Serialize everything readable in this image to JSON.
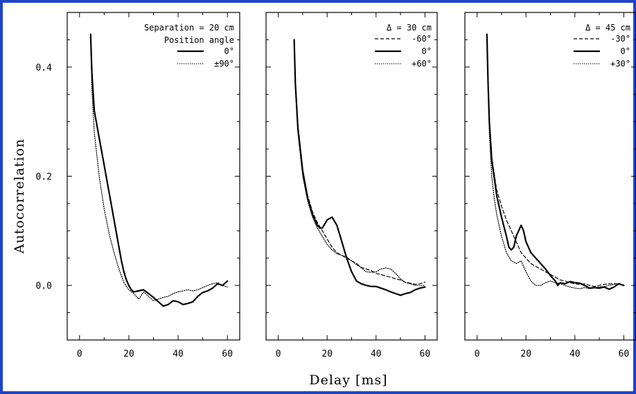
{
  "figure": {
    "ylabel": "Autocorrelation",
    "xlabel": "Delay [ms]",
    "frame_color": "#1f43c8"
  },
  "chart_data": [
    {
      "type": "line",
      "xlim": [
        -5,
        65
      ],
      "ylim": [
        -0.1,
        0.5
      ],
      "xticks": [
        0,
        20,
        40,
        60
      ],
      "xtick_labels": [
        "0",
        "20",
        "40",
        "60"
      ],
      "yticks": [
        0.0,
        0.2,
        0.4
      ],
      "ytick_labels": [
        "0.0",
        "0.2",
        "0.4"
      ],
      "show_ytick_labels": true,
      "legend": {
        "title_lines": [
          "Separation = 20 cm",
          "Position angle"
        ],
        "placement": "top-right"
      },
      "series": [
        {
          "name": "0°",
          "style": "solid",
          "x": [
            4.5,
            5,
            6,
            8,
            10,
            12,
            14,
            16,
            17,
            18,
            19,
            20,
            21,
            22,
            24,
            26,
            28,
            30,
            32,
            34,
            36,
            38,
            40,
            42,
            44,
            46,
            48,
            50,
            52,
            54,
            56,
            58,
            60
          ],
          "y": [
            0.46,
            0.39,
            0.32,
            0.27,
            0.22,
            0.17,
            0.12,
            0.07,
            0.045,
            0.025,
            0.01,
            0.0,
            -0.008,
            -0.012,
            -0.01,
            -0.008,
            -0.015,
            -0.022,
            -0.03,
            -0.038,
            -0.035,
            -0.028,
            -0.03,
            -0.035,
            -0.033,
            -0.03,
            -0.02,
            -0.013,
            -0.01,
            -0.005,
            0.003,
            0.0,
            0.008
          ]
        },
        {
          "name": "±90°",
          "style": "dotted",
          "x": [
            4.5,
            5,
            6,
            8,
            10,
            12,
            14,
            16,
            18,
            20,
            22,
            24,
            26,
            28,
            30,
            32,
            34,
            36,
            38,
            40,
            42,
            44,
            46,
            48,
            50,
            52,
            54,
            56,
            58,
            60
          ],
          "y": [
            0.46,
            0.36,
            0.28,
            0.2,
            0.14,
            0.095,
            0.06,
            0.03,
            0.005,
            -0.008,
            -0.015,
            -0.025,
            -0.012,
            -0.02,
            -0.028,
            -0.025,
            -0.022,
            -0.02,
            -0.015,
            -0.012,
            -0.01,
            -0.008,
            -0.01,
            -0.008,
            -0.004,
            0.0,
            0.003,
            0.005,
            0.0,
            -0.003
          ]
        }
      ]
    },
    {
      "type": "line",
      "xlim": [
        -5,
        65
      ],
      "ylim": [
        -0.1,
        0.5
      ],
      "xticks": [
        0,
        20,
        40,
        60
      ],
      "xtick_labels": [
        "0",
        "20",
        "40",
        "60"
      ],
      "yticks": [
        0.0,
        0.2,
        0.4
      ],
      "ytick_labels": [
        "0.0",
        "0.2",
        "0.4"
      ],
      "show_ytick_labels": false,
      "legend": {
        "title_lines": [
          "Δ = 30 cm"
        ],
        "placement": "top-right"
      },
      "series": [
        {
          "name": "-60°",
          "style": "dashed",
          "x": [
            6.5,
            7,
            8,
            10,
            12,
            14,
            16,
            18,
            20,
            22,
            24,
            26,
            28,
            30,
            32,
            34,
            36,
            38,
            40,
            42,
            44,
            46,
            48,
            50,
            52,
            54,
            56,
            58,
            60
          ],
          "y": [
            0.45,
            0.37,
            0.29,
            0.21,
            0.165,
            0.135,
            0.115,
            0.1,
            0.085,
            0.07,
            0.06,
            0.055,
            0.05,
            0.045,
            0.04,
            0.033,
            0.03,
            0.027,
            0.022,
            0.02,
            0.017,
            0.015,
            0.012,
            0.01,
            0.006,
            0.004,
            0.002,
            0.003,
            0.006
          ]
        },
        {
          "name": "0°",
          "style": "solid",
          "x": [
            6.5,
            7,
            8,
            10,
            12,
            14,
            16,
            17,
            18,
            20,
            22,
            24,
            26,
            28,
            30,
            32,
            34,
            36,
            38,
            40,
            42,
            44,
            46,
            48,
            50,
            52,
            54,
            56,
            58,
            60
          ],
          "y": [
            0.45,
            0.37,
            0.29,
            0.21,
            0.16,
            0.13,
            0.11,
            0.105,
            0.105,
            0.12,
            0.125,
            0.11,
            0.08,
            0.05,
            0.025,
            0.008,
            0.003,
            0.0,
            -0.002,
            -0.002,
            -0.005,
            -0.008,
            -0.012,
            -0.015,
            -0.018,
            -0.015,
            -0.013,
            -0.008,
            -0.005,
            -0.003
          ]
        },
        {
          "name": "+60°",
          "style": "dotted",
          "x": [
            6.5,
            7,
            8,
            10,
            12,
            14,
            16,
            18,
            20,
            22,
            24,
            26,
            28,
            30,
            32,
            34,
            36,
            38,
            40,
            42,
            44,
            46,
            48,
            50,
            52,
            54,
            56,
            58,
            60
          ],
          "y": [
            0.45,
            0.37,
            0.28,
            0.2,
            0.155,
            0.125,
            0.105,
            0.09,
            0.075,
            0.065,
            0.058,
            0.055,
            0.052,
            0.045,
            0.038,
            0.032,
            0.025,
            0.024,
            0.025,
            0.03,
            0.032,
            0.03,
            0.022,
            0.012,
            0.005,
            0.003,
            0.0,
            0.0,
            0.0
          ]
        }
      ]
    },
    {
      "type": "line",
      "xlim": [
        -5,
        65
      ],
      "ylim": [
        -0.1,
        0.5
      ],
      "xticks": [
        0,
        20,
        40,
        60
      ],
      "xtick_labels": [
        "0",
        "20",
        "40",
        "60"
      ],
      "yticks": [
        0.0,
        0.2,
        0.4
      ],
      "ytick_labels": [
        "0.0",
        "0.2",
        "0.4"
      ],
      "show_ytick_labels": false,
      "legend": {
        "title_lines": [
          "Δ = 45 cm"
        ],
        "placement": "top-right"
      },
      "series": [
        {
          "name": "-30°",
          "style": "dashed",
          "x": [
            4,
            4.5,
            5,
            6,
            8,
            10,
            12,
            14,
            16,
            18,
            20,
            22,
            24,
            26,
            28,
            30,
            32,
            34,
            36,
            38,
            40,
            42,
            44,
            46,
            48,
            50,
            52,
            54,
            56,
            58,
            60
          ],
          "y": [
            0.46,
            0.37,
            0.3,
            0.235,
            0.175,
            0.145,
            0.12,
            0.1,
            0.08,
            0.06,
            0.05,
            0.04,
            0.035,
            0.03,
            0.025,
            0.02,
            0.015,
            0.01,
            0.008,
            0.005,
            0.003,
            0.002,
            0.003,
            0.0,
            -0.002,
            0.0,
            0.002,
            0.003,
            0.003,
            0.003,
            0.0
          ]
        },
        {
          "name": "0°",
          "style": "solid",
          "x": [
            4,
            4.5,
            5,
            6,
            8,
            10,
            12,
            13,
            14,
            15,
            16,
            17,
            18,
            19,
            20,
            22,
            24,
            26,
            28,
            30,
            32,
            33,
            34,
            36,
            38,
            40,
            42,
            44,
            46,
            48,
            50,
            52,
            54,
            56,
            58,
            60
          ],
          "y": [
            0.46,
            0.37,
            0.3,
            0.23,
            0.165,
            0.125,
            0.09,
            0.07,
            0.065,
            0.07,
            0.09,
            0.1,
            0.11,
            0.1,
            0.08,
            0.06,
            0.05,
            0.04,
            0.03,
            0.018,
            0.008,
            0.0,
            0.005,
            0.003,
            0.007,
            0.005,
            0.004,
            0.0,
            -0.005,
            -0.004,
            -0.005,
            -0.003,
            -0.007,
            -0.003,
            0.003,
            0.0
          ]
        },
        {
          "name": "+30°",
          "style": "dotted",
          "x": [
            4,
            4.5,
            5,
            6,
            7,
            8,
            10,
            12,
            14,
            16,
            18,
            20,
            22,
            24,
            26,
            28,
            30,
            32,
            34,
            36,
            38,
            40,
            42,
            44,
            46,
            48,
            50,
            52,
            54,
            56,
            58,
            60
          ],
          "y": [
            0.46,
            0.36,
            0.28,
            0.2,
            0.16,
            0.13,
            0.09,
            0.06,
            0.045,
            0.04,
            0.045,
            0.025,
            0.008,
            0.0,
            0.0,
            0.005,
            0.008,
            0.005,
            0.003,
            0.0,
            -0.003,
            -0.005,
            -0.006,
            -0.004,
            -0.006,
            -0.004,
            -0.003,
            -0.002,
            0.0,
            0.002,
            0.003,
            0.0
          ]
        }
      ]
    }
  ]
}
